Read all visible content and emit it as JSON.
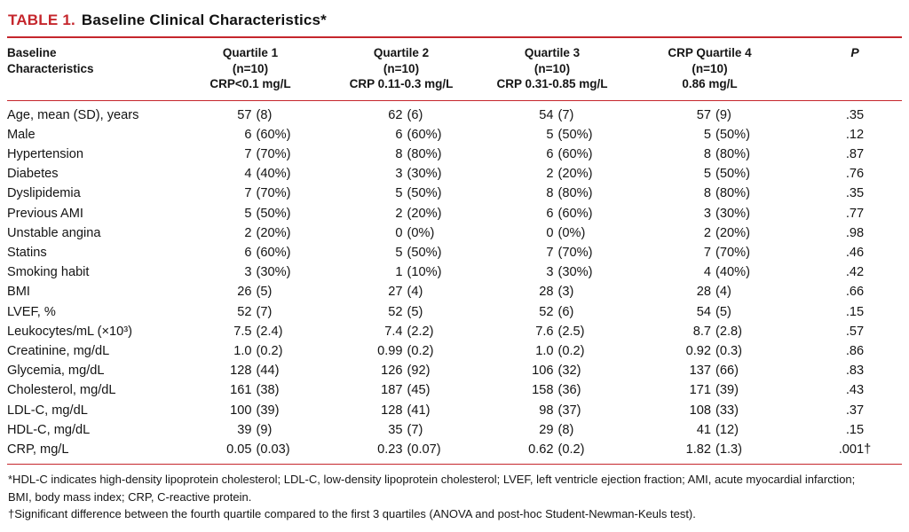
{
  "title": {
    "table_number": "TABLE 1.",
    "table_title": "Baseline Clinical Characteristics*"
  },
  "colors": {
    "accent_red": "#c5262c",
    "text": "#1b1b1b",
    "background": "#ffffff"
  },
  "table": {
    "header": {
      "stub": [
        "Baseline",
        "Characteristics"
      ],
      "quartiles": [
        {
          "lines": [
            "Quartile 1",
            "(n=10)",
            "CRP<0.1 mg/L"
          ]
        },
        {
          "lines": [
            "Quartile 2",
            "(n=10)",
            "CRP 0.11-0.3 mg/L"
          ]
        },
        {
          "lines": [
            "Quartile 3",
            "(n=10)",
            "CRP 0.31-0.85 mg/L"
          ]
        },
        {
          "lines": [
            "CRP Quartile 4",
            "(n=10)",
            "0.86 mg/L"
          ]
        }
      ],
      "p_label": "P"
    },
    "rows": [
      {
        "label": "Age, mean (SD), years",
        "q1": "57 (8)",
        "q2": "62 (6)",
        "q3": "54 (7)",
        "q4": "57 (9)",
        "p": ".35"
      },
      {
        "label": "Male",
        "q1": "6 (60%)",
        "q2": "6 (60%)",
        "q3": "5 (50%)",
        "q4": "5 (50%)",
        "p": ".12"
      },
      {
        "label": "Hypertension",
        "q1": "7 (70%)",
        "q2": "8 (80%)",
        "q3": "6 (60%)",
        "q4": "8 (80%)",
        "p": ".87"
      },
      {
        "label": "Diabetes",
        "q1": "4 (40%)",
        "q2": "3 (30%)",
        "q3": "2 (20%)",
        "q4": "5 (50%)",
        "p": ".76"
      },
      {
        "label": "Dyslipidemia",
        "q1": "7 (70%)",
        "q2": "5 (50%)",
        "q3": "8 (80%)",
        "q4": "8 (80%)",
        "p": ".35"
      },
      {
        "label": "Previous AMI",
        "q1": "5 (50%)",
        "q2": "2 (20%)",
        "q3": "6 (60%)",
        "q4": "3 (30%)",
        "p": ".77"
      },
      {
        "label": "Unstable angina",
        "q1": "2 (20%)",
        "q2": "0 (0%)",
        "q3": "0 (0%)",
        "q4": "2 (20%)",
        "p": ".98"
      },
      {
        "label": "Statins",
        "q1": "6 (60%)",
        "q2": "5 (50%)",
        "q3": "7 (70%)",
        "q4": "7 (70%)",
        "p": ".46"
      },
      {
        "label": "Smoking habit",
        "q1": "3 (30%)",
        "q2": "1 (10%)",
        "q3": "3 (30%)",
        "q4": "4 (40%)",
        "p": ".42"
      },
      {
        "label": "BMI",
        "q1": "26 (5)",
        "q2": "27 (4)",
        "q3": "28 (3)",
        "q4": "28 (4)",
        "p": ".66"
      },
      {
        "label": "LVEF, %",
        "q1": "52 (7)",
        "q2": "52 (5)",
        "q3": "52 (6)",
        "q4": "54 (5)",
        "p": ".15"
      },
      {
        "label": "Leukocytes/mL (×10³)",
        "q1": "7.5 (2.4)",
        "q2": "7.4 (2.2)",
        "q3": "7.6 (2.5)",
        "q4": "8.7 (2.8)",
        "p": ".57"
      },
      {
        "label": "Creatinine, mg/dL",
        "q1": "1.0 (0.2)",
        "q2": "0.99 (0.2)",
        "q3": "1.0 (0.2)",
        "q4": "0.92 (0.3)",
        "p": ".86"
      },
      {
        "label": "Glycemia, mg/dL",
        "q1": "128 (44)",
        "q2": "126 (92)",
        "q3": "106 (32)",
        "q4": "137 (66)",
        "p": ".83"
      },
      {
        "label": "Cholesterol, mg/dL",
        "q1": "161 (38)",
        "q2": "187 (45)",
        "q3": "158 (36)",
        "q4": "171 (39)",
        "p": ".43"
      },
      {
        "label": "LDL-C, mg/dL",
        "q1": "100 (39)",
        "q2": "128 (41)",
        "q3": "98 (37)",
        "q4": "108 (33)",
        "p": ".37"
      },
      {
        "label": "HDL-C, mg/dL",
        "q1": "39 (9)",
        "q2": "35 (7)",
        "q3": "29 (8)",
        "q4": "41 (12)",
        "p": ".15"
      },
      {
        "label": "CRP, mg/L",
        "q1": "0.05 (0.03)",
        "q2": "0.23 (0.07)",
        "q3": "0.62 (0.2)",
        "q4": "1.82 (1.3)",
        "p": ".001†"
      }
    ]
  },
  "footnotes": {
    "lines": [
      "*HDL-C indicates high-density lipoprotein cholesterol; LDL-C, low-density lipoprotein cholesterol; LVEF, left ventricle ejection fraction; AMI, acute myocardial infarction;",
      "BMI, body mass index; CRP, C-reactive protein.",
      "†Significant difference between the fourth quartile compared to the first 3 quartiles (ANOVA and post-hoc Student-Newman-Keuls test)."
    ]
  }
}
